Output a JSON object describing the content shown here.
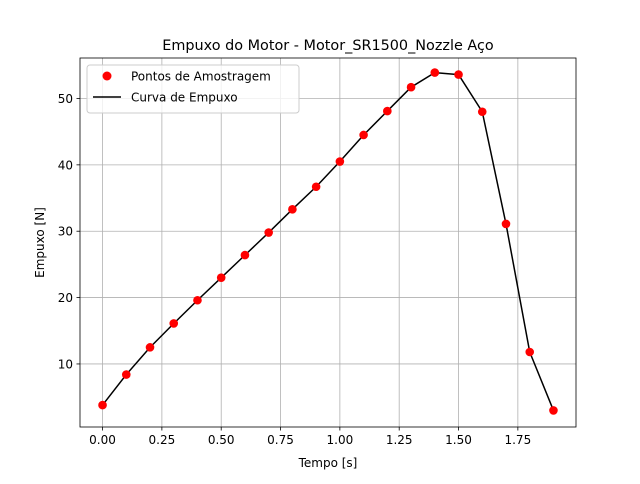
{
  "chart_data": {
    "type": "line",
    "title": "Empuxo do Motor - Motor_SR1500_Nozzle Aço",
    "xlabel": "Tempo [s]",
    "ylabel": "Empuxo [N]",
    "xlim": [
      -0.095,
      1.995
    ],
    "ylim": [
      0.5,
      56.1
    ],
    "xticks": [
      0.0,
      0.25,
      0.5,
      0.75,
      1.0,
      1.25,
      1.5,
      1.75
    ],
    "xtick_labels": [
      "0.00",
      "0.25",
      "0.50",
      "0.75",
      "1.00",
      "1.25",
      "1.50",
      "1.75"
    ],
    "yticks": [
      10,
      20,
      30,
      40,
      50
    ],
    "ytick_labels": [
      "10",
      "20",
      "30",
      "40",
      "50"
    ],
    "grid": true,
    "legend_position": "top-left",
    "series": [
      {
        "name": "Pontos de Amostragem",
        "kind": "scatter",
        "color": "#ff0000",
        "x": [
          0.0,
          0.1,
          0.2,
          0.3,
          0.4,
          0.5,
          0.6,
          0.7,
          0.8,
          0.9,
          1.0,
          1.1,
          1.2,
          1.3,
          1.4,
          1.5,
          1.6,
          1.7,
          1.8,
          1.9
        ],
        "y": [
          3.8,
          8.4,
          12.5,
          16.1,
          19.6,
          23.0,
          26.4,
          29.8,
          33.3,
          36.7,
          40.5,
          44.5,
          48.1,
          51.7,
          53.9,
          53.6,
          48.0,
          31.1,
          11.8,
          3.0
        ]
      },
      {
        "name": "Curva de Empuxo",
        "kind": "line",
        "color": "#000000",
        "x": [
          0.0,
          0.1,
          0.2,
          0.3,
          0.4,
          0.5,
          0.6,
          0.7,
          0.8,
          0.9,
          1.0,
          1.1,
          1.2,
          1.3,
          1.4,
          1.5,
          1.6,
          1.7,
          1.8,
          1.9
        ],
        "y": [
          3.8,
          8.4,
          12.5,
          16.1,
          19.6,
          23.0,
          26.4,
          29.8,
          33.3,
          36.7,
          40.5,
          44.5,
          48.1,
          51.7,
          53.9,
          53.6,
          48.0,
          31.1,
          11.8,
          3.0
        ]
      }
    ]
  }
}
